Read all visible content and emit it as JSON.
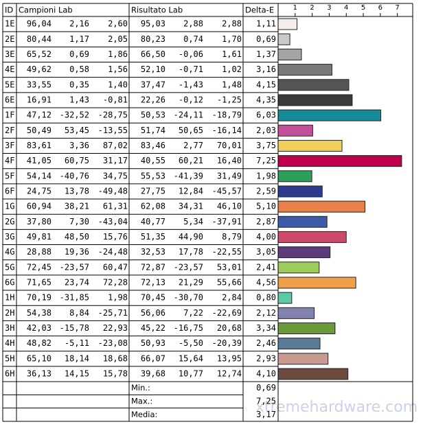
{
  "table": {
    "headers": {
      "id": "ID",
      "campioni": "Campioni Lab",
      "risultato": "Risultato Lab",
      "delta_e": "Delta-E"
    },
    "rows": [
      {
        "campioni": [
          "96,04",
          "2,16",
          "2,60"
        ],
        "risultato": [
          "95,03",
          "2,88",
          "2,88"
        ]
      },
      {
        "campioni": [
          "80,44",
          "1,17",
          "2,05"
        ],
        "risultato": [
          "80,23",
          "0,74",
          "1,70"
        ]
      },
      {
        "campioni": [
          "65,52",
          "0,69",
          "1,86"
        ],
        "risultato": [
          "66,50",
          "-0,06",
          "1,61"
        ]
      },
      {
        "campioni": [
          "49,62",
          "0,58",
          "1,56"
        ],
        "risultato": [
          "52,10",
          "-0,71",
          "1,02"
        ]
      },
      {
        "campioni": [
          "33,55",
          "0,35",
          "1,40"
        ],
        "risultato": [
          "37,47",
          "-1,43",
          "1,48"
        ]
      },
      {
        "campioni": [
          "16,91",
          "1,43",
          "-0,81"
        ],
        "risultato": [
          "22,26",
          "-0,12",
          "-1,25"
        ]
      },
      {
        "campioni": [
          "47,12",
          "-32,52",
          "-28,75"
        ],
        "risultato": [
          "50,53",
          "-24,11",
          "-18,79"
        ]
      },
      {
        "campioni": [
          "50,49",
          "53,45",
          "-13,55"
        ],
        "risultato": [
          "51,74",
          "50,65",
          "-16,14"
        ]
      },
      {
        "campioni": [
          "83,61",
          "3,36",
          "87,02"
        ],
        "risultato": [
          "83,46",
          "2,77",
          "70,01"
        ]
      },
      {
        "campioni": [
          "41,05",
          "60,75",
          "31,17"
        ],
        "risultato": [
          "40,55",
          "60,21",
          "16,40"
        ]
      },
      {
        "campioni": [
          "54,14",
          "-40,76",
          "34,75"
        ],
        "risultato": [
          "55,53",
          "-41,39",
          "31,49"
        ]
      },
      {
        "campioni": [
          "24,75",
          "13,78",
          "-49,48"
        ],
        "risultato": [
          "27,75",
          "12,84",
          "-45,57"
        ]
      },
      {
        "campioni": [
          "60,94",
          "38,21",
          "61,31"
        ],
        "risultato": [
          "62,08",
          "34,31",
          "46,10"
        ]
      },
      {
        "campioni": [
          "37,80",
          "7,30",
          "-43,04"
        ],
        "risultato": [
          "40,77",
          "5,34",
          "-37,91"
        ]
      },
      {
        "campioni": [
          "49,81",
          "48,50",
          "15,76"
        ],
        "risultato": [
          "51,35",
          "44,90",
          "8,79"
        ]
      },
      {
        "campioni": [
          "28,88",
          "19,36",
          "-24,48"
        ],
        "risultato": [
          "32,53",
          "17,78",
          "-22,55"
        ]
      },
      {
        "campioni": [
          "72,45",
          "-23,57",
          "60,47"
        ],
        "risultato": [
          "72,87",
          "-23,57",
          "53,01"
        ]
      },
      {
        "campioni": [
          "71,65",
          "23,74",
          "72,28"
        ],
        "risultato": [
          "72,13",
          "21,29",
          "55,66"
        ]
      },
      {
        "campioni": [
          "70,19",
          "-31,85",
          "1,98"
        ],
        "risultato": [
          "70,45",
          "-30,70",
          "2,84"
        ]
      },
      {
        "campioni": [
          "54,38",
          "8,84",
          "-25,71"
        ],
        "risultato": [
          "56,06",
          "7,22",
          "-22,69"
        ]
      },
      {
        "campioni": [
          "42,03",
          "-15,78",
          "22,93"
        ],
        "risultato": [
          "45,22",
          "-16,75",
          "20,68"
        ]
      },
      {
        "campioni": [
          "48,82",
          "-5,11",
          "-23,08"
        ],
        "risultato": [
          "50,93",
          "-5,50",
          "-20,39"
        ]
      },
      {
        "campioni": [
          "65,10",
          "18,14",
          "18,68"
        ],
        "risultato": [
          "66,07",
          "15,64",
          "13,95"
        ]
      },
      {
        "campioni": [
          "36,13",
          "14,15",
          "15,78"
        ],
        "risultato": [
          "39,68",
          "10,77",
          "12,74"
        ]
      }
    ],
    "summary": [
      {
        "label": "Min.:",
        "value": "0,69"
      },
      {
        "label": "Max.:",
        "value": "7,25"
      },
      {
        "label": "Media:",
        "value": "3,17"
      }
    ]
  },
  "chart_data": {
    "type": "bar",
    "orientation": "horizontal",
    "categories": [
      "1E",
      "2E",
      "3E",
      "4E",
      "5E",
      "6E",
      "1F",
      "2F",
      "3F",
      "4F",
      "5F",
      "6F",
      "1G",
      "2G",
      "3G",
      "4G",
      "5G",
      "6G",
      "1H",
      "2H",
      "3H",
      "4H",
      "5H",
      "6H"
    ],
    "values": [
      1.11,
      0.69,
      1.37,
      3.16,
      4.15,
      4.35,
      6.03,
      2.03,
      3.75,
      7.25,
      1.98,
      2.59,
      5.1,
      2.87,
      4.0,
      3.05,
      2.41,
      4.56,
      0.8,
      2.12,
      3.34,
      2.46,
      2.93,
      4.1
    ],
    "value_labels": [
      "1,11",
      "0,69",
      "1,37",
      "3,16",
      "4,15",
      "4,35",
      "6,03",
      "2,03",
      "3,75",
      "7,25",
      "1,98",
      "2,59",
      "5,10",
      "2,87",
      "4,00",
      "3,05",
      "2,41",
      "4,56",
      "0,80",
      "2,12",
      "3,34",
      "2,46",
      "2,93",
      "4,10"
    ],
    "colors": [
      "#f5ede9",
      "#c9c9c9",
      "#a4a4a4",
      "#7a7a7a",
      "#555555",
      "#3b3b3b",
      "#168c9a",
      "#c4509a",
      "#f0cf5c",
      "#c0004f",
      "#2aa05a",
      "#2b3c90",
      "#e8804a",
      "#3f5aa6",
      "#cc4a6a",
      "#5b3b78",
      "#9dcc5c",
      "#f0a04a",
      "#5acaa8",
      "#8282b2",
      "#6a9a3a",
      "#5b7b9b",
      "#c89a90",
      "#6b4b40"
    ],
    "xlim": [
      0,
      7.9
    ],
    "xticks": [
      1,
      2,
      3,
      4,
      5,
      6,
      7
    ]
  },
  "watermark": "xtremehardware.com"
}
